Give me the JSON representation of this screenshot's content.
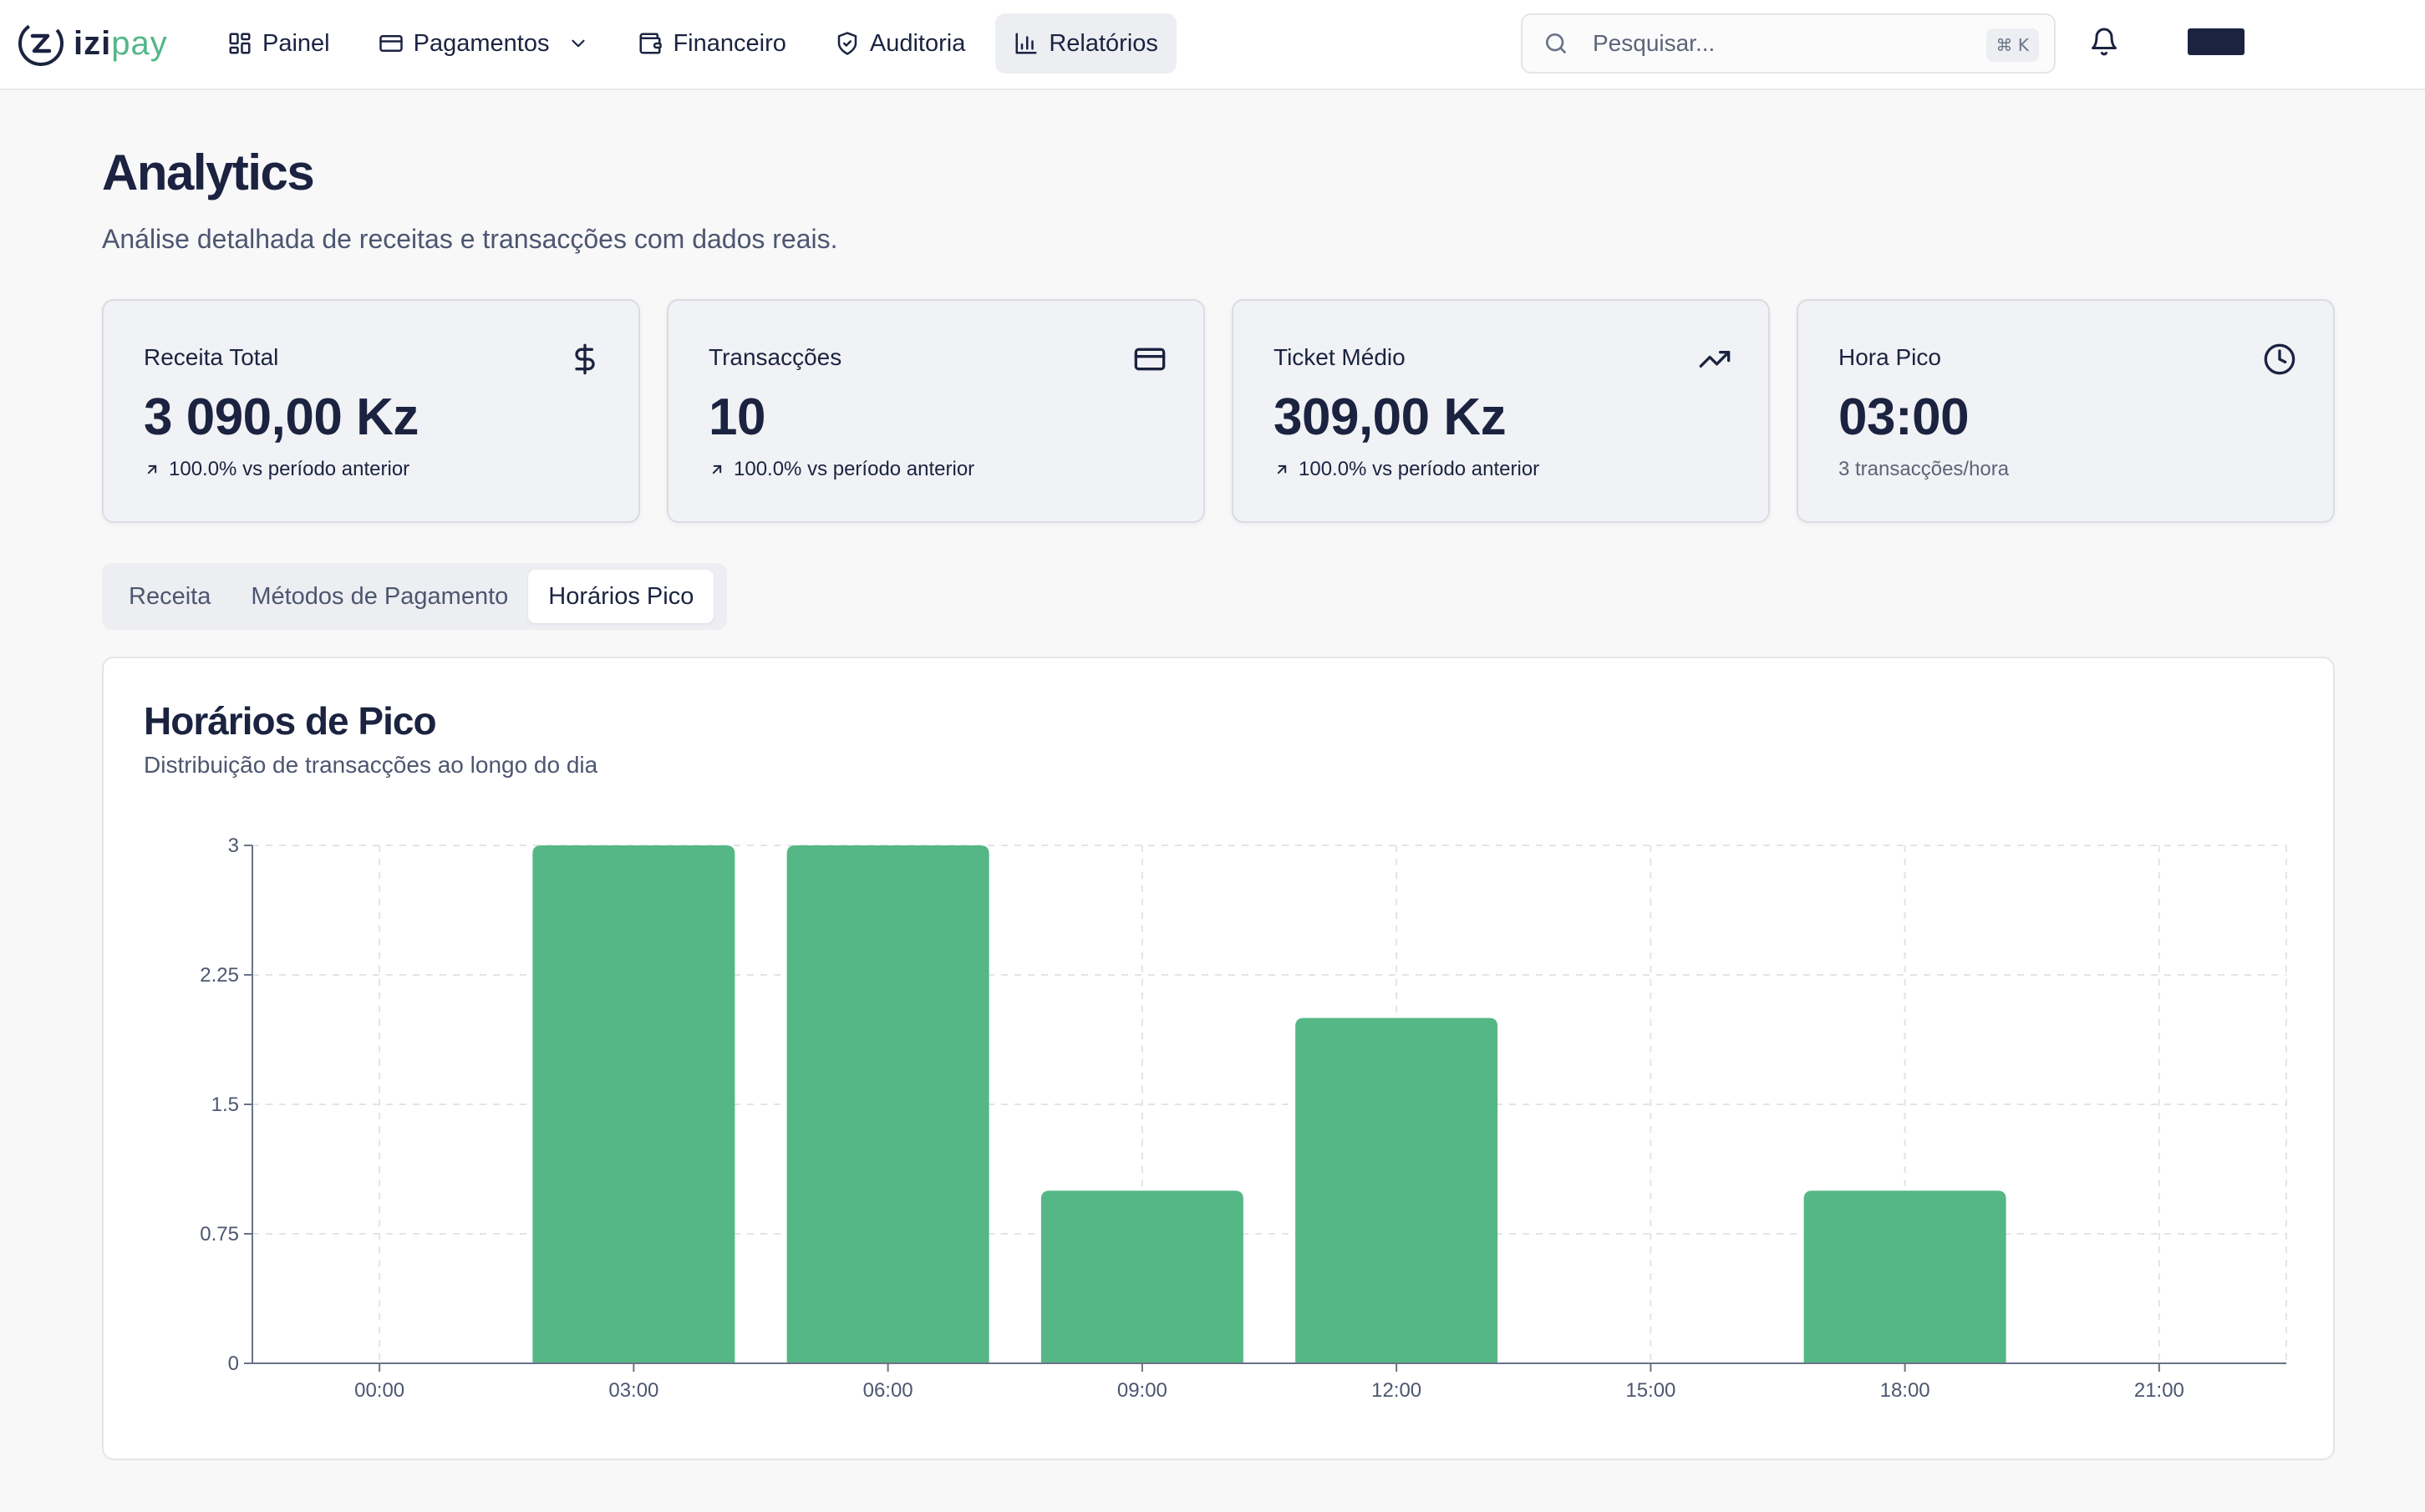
{
  "app": {
    "logo_left": "izi",
    "logo_right": "pay"
  },
  "nav": {
    "items": [
      {
        "label": "Painel",
        "icon": "dashboard-grid-icon"
      },
      {
        "label": "Pagamentos",
        "icon": "wallet-icon"
      },
      {
        "label": "Financeiro",
        "icon": "finance-wallet-icon"
      },
      {
        "label": "Auditoria",
        "icon": "shield-check-icon"
      },
      {
        "label": "Relatórios",
        "icon": "bar-chart-icon",
        "active": true
      }
    ]
  },
  "search": {
    "placeholder": "Pesquisar...",
    "shortcut": "⌘ K"
  },
  "header": {
    "title": "Analytics",
    "subtitle": "Análise detalhada de receitas e transacções com dados reais."
  },
  "stats": [
    {
      "label": "Receita Total",
      "value": "3 090,00 Kz",
      "foot": "100.0% vs período anterior",
      "icon": "dollar-icon"
    },
    {
      "label": "Transacções",
      "value": "10",
      "foot": "100.0% vs período anterior",
      "icon": "credit-card-icon"
    },
    {
      "label": "Ticket Médio",
      "value": "309,00 Kz",
      "foot": "100.0% vs período anterior",
      "icon": "trending-up-icon"
    },
    {
      "label": "Hora Pico",
      "value": "03:00",
      "foot": "3 transacções/hora",
      "icon": "clock-icon"
    }
  ],
  "tabs": [
    {
      "label": "Receita"
    },
    {
      "label": "Métodos de Pagamento"
    },
    {
      "label": "Horários Pico",
      "active": true
    }
  ],
  "panel": {
    "title": "Horários de Pico",
    "subtitle": "Distribuição de transacções ao longo do dia"
  },
  "colors": {
    "bar": "#55b785",
    "primary_text": "#1b2340",
    "active_tab_bg": "#ffffff"
  },
  "chart_data": {
    "type": "bar",
    "categories": [
      "00:00",
      "03:00",
      "06:00",
      "09:00",
      "12:00",
      "15:00",
      "18:00",
      "21:00"
    ],
    "values": [
      0,
      3,
      3,
      1,
      2,
      0,
      1,
      0
    ],
    "yticks": [
      "0",
      "0.75",
      "1.5",
      "2.25",
      "3"
    ],
    "ylim": [
      0,
      3
    ],
    "grid": true,
    "legend": "none"
  }
}
